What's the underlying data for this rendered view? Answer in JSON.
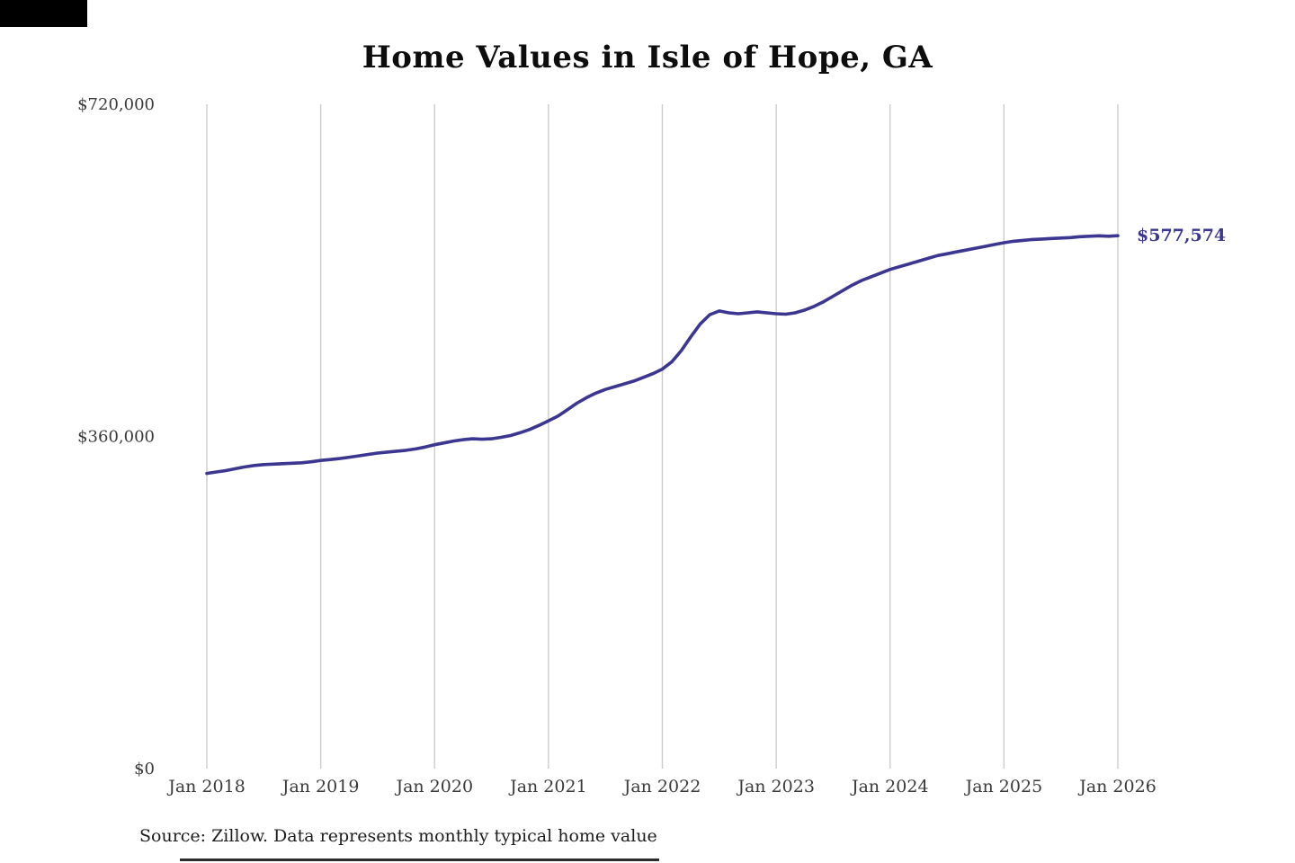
{
  "chart_data": {
    "type": "line",
    "title": "Home Values in Isle of Hope, GA",
    "x_tick_labels": [
      "Jan 2018",
      "Jan 2019",
      "Jan 2020",
      "Jan 2021",
      "Jan 2022",
      "Jan 2023",
      "Jan 2024",
      "Jan 2025",
      "Jan 2026"
    ],
    "y_ticks": [
      {
        "label": "$0",
        "value": 0
      },
      {
        "label": "$360,000",
        "value": 360000
      },
      {
        "label": "$720,000",
        "value": 720000
      }
    ],
    "ylim": [
      0,
      720000
    ],
    "grid": "vertical-only",
    "legend": "none",
    "line_color": "#3b3690",
    "grid_color": "#cccccc",
    "tick_text_color": "#3a3a3a",
    "months": [
      "2018-01",
      "2018-02",
      "2018-03",
      "2018-04",
      "2018-05",
      "2018-06",
      "2018-07",
      "2018-08",
      "2018-09",
      "2018-10",
      "2018-11",
      "2018-12",
      "2019-01",
      "2019-02",
      "2019-03",
      "2019-04",
      "2019-05",
      "2019-06",
      "2019-07",
      "2019-08",
      "2019-09",
      "2019-10",
      "2019-11",
      "2019-12",
      "2020-01",
      "2020-02",
      "2020-03",
      "2020-04",
      "2020-05",
      "2020-06",
      "2020-07",
      "2020-08",
      "2020-09",
      "2020-10",
      "2020-11",
      "2020-12",
      "2021-01",
      "2021-02",
      "2021-03",
      "2021-04",
      "2021-05",
      "2021-06",
      "2021-07",
      "2021-08",
      "2021-09",
      "2021-10",
      "2021-11",
      "2021-12",
      "2022-01",
      "2022-02",
      "2022-03",
      "2022-04",
      "2022-05",
      "2022-06",
      "2022-07",
      "2022-08",
      "2022-09",
      "2022-10",
      "2022-11",
      "2022-12",
      "2023-01",
      "2023-02",
      "2023-03",
      "2023-04",
      "2023-05",
      "2023-06",
      "2023-07",
      "2023-08",
      "2023-09",
      "2023-10",
      "2023-11",
      "2023-12",
      "2024-01",
      "2024-02",
      "2024-03",
      "2024-04",
      "2024-05",
      "2024-06",
      "2024-07",
      "2024-08",
      "2024-09",
      "2024-10",
      "2024-11",
      "2024-12",
      "2025-01",
      "2025-02",
      "2025-03",
      "2025-04",
      "2025-05",
      "2025-06",
      "2025-07",
      "2025-08",
      "2025-09",
      "2025-10",
      "2025-11",
      "2025-12",
      "2026-01"
    ],
    "series": [
      {
        "name": "Monthly typical home value",
        "values": [
          320000,
          321500,
          323000,
          325000,
          327000,
          328500,
          329500,
          330000,
          330500,
          331000,
          331500,
          332500,
          334000,
          335000,
          336000,
          337500,
          339000,
          340500,
          342000,
          343000,
          344000,
          345000,
          346500,
          348500,
          351000,
          353000,
          355000,
          356500,
          357500,
          357000,
          357500,
          359000,
          361000,
          364000,
          367500,
          372000,
          377000,
          382000,
          389000,
          396000,
          402000,
          407000,
          411000,
          414000,
          417000,
          420000,
          424000,
          428000,
          433000,
          441000,
          453000,
          468000,
          482000,
          492000,
          496000,
          494000,
          493000,
          494000,
          495000,
          494000,
          493000,
          492500,
          494000,
          497000,
          501000,
          506000,
          512000,
          518000,
          524000,
          529000,
          533000,
          537000,
          541000,
          544000,
          547000,
          550000,
          553000,
          556000,
          558000,
          560000,
          562000,
          564000,
          566000,
          568000,
          570000,
          571500,
          572500,
          573500,
          574000,
          574500,
          575000,
          575500,
          576500,
          577000,
          577500,
          577000,
          577574
        ]
      }
    ],
    "end_label": {
      "text": "$577,574",
      "value": 577574
    }
  },
  "footer": {
    "source_note": "Source: Zillow. Data represents monthly typical home value"
  }
}
